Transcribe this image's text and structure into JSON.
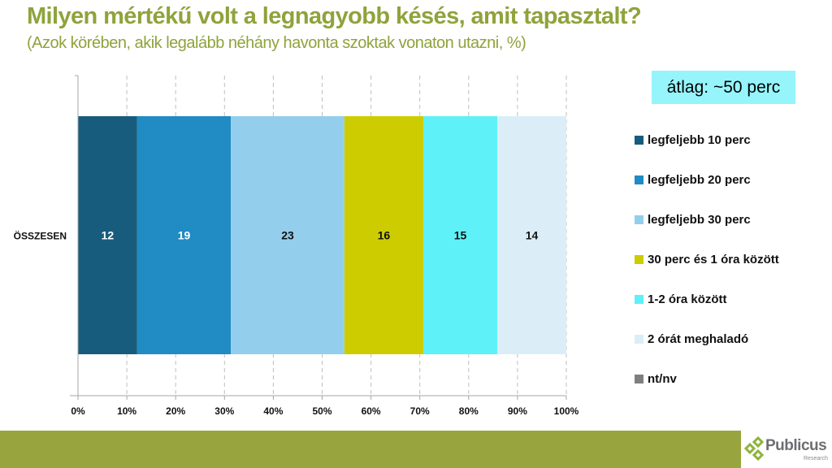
{
  "header": {
    "title": "Milyen mértékű volt a legnagyobb késés, amit tapasztalt?",
    "subtitle": "(Azok körében, akik legalább néhány havonta szoktak vonaton utazni, %)"
  },
  "average_box": {
    "text": "átlag: ~50 perc",
    "color": "#95F5FB"
  },
  "chart_data": {
    "type": "bar",
    "orientation": "horizontal",
    "stacked": true,
    "normalized_to_100": true,
    "title": "Milyen mértékű volt a legnagyobb késés, amit tapasztalt?",
    "subtitle": "(Azok körében, akik legalább néhány havonta szoktak vonaton utazni, %)",
    "categories": [
      "ÖSSZESEN"
    ],
    "xlim": [
      0,
      100
    ],
    "x_ticks": [
      "0%",
      "10%",
      "20%",
      "30%",
      "40%",
      "50%",
      "60%",
      "70%",
      "80%",
      "90%",
      "100%"
    ],
    "grid": "vertical dashed",
    "legend_position": "right",
    "series": [
      {
        "name": "legfeljebb 10 perc",
        "values": [
          12
        ],
        "color": "#175C7D",
        "label_color": "#ffffff"
      },
      {
        "name": "legfeljebb 20 perc",
        "values": [
          19
        ],
        "color": "#218BC3",
        "label_color": "#ffffff"
      },
      {
        "name": "legfeljebb 30 perc",
        "values": [
          23
        ],
        "color": "#93CFEC",
        "label_color": "#111111"
      },
      {
        "name": "30 perc és 1 óra között",
        "values": [
          16
        ],
        "color": "#CCCC00",
        "label_color": "#111111"
      },
      {
        "name": "1-2 óra között",
        "values": [
          15
        ],
        "color": "#5EF1F7",
        "label_color": "#111111"
      },
      {
        "name": "2 órát meghaladó",
        "values": [
          14
        ],
        "color": "#DBEEF7",
        "label_color": "#111111"
      },
      {
        "name": "nt/nv",
        "values": [
          0
        ],
        "color": "#7F7F7F",
        "label_color": "#111111"
      }
    ]
  },
  "footer": {
    "bar_color": "#98A53E",
    "logo": {
      "name": "Publicus",
      "subtitle": "Research",
      "icon": "diamond-cluster-icon",
      "color": "#8FB33B"
    }
  }
}
